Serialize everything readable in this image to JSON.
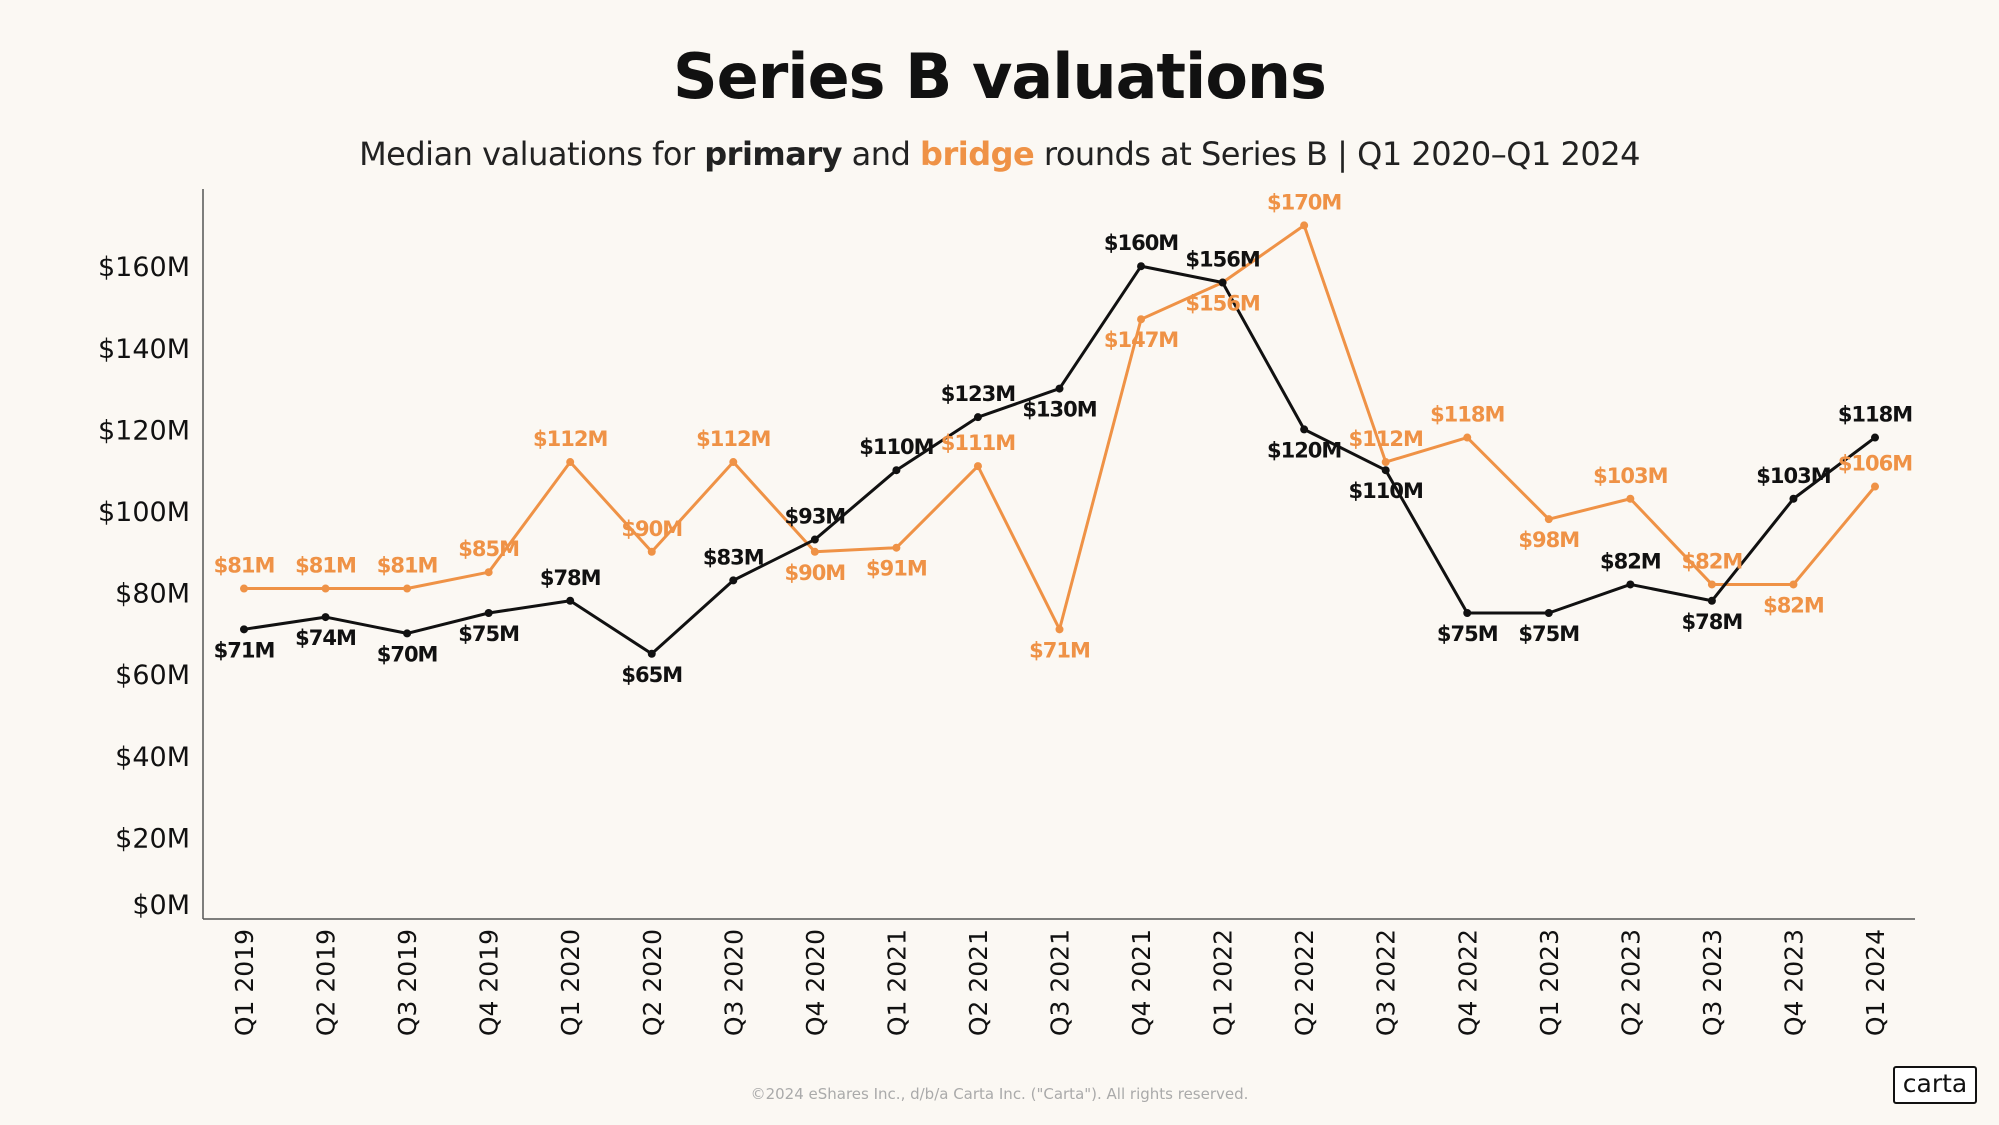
{
  "header": {
    "title": "Series B valuations",
    "subtitle_pre": "Median valuations for ",
    "subtitle_primary": "primary",
    "subtitle_mid": " and ",
    "subtitle_bridge": "bridge",
    "subtitle_post": " rounds at  Series B | Q1 2020–Q1 2024"
  },
  "footer": {
    "copyright": "©2024 eShares Inc., d/b/a Carta Inc. (\"Carta\"). All rights reserved.",
    "logo": "carta"
  },
  "chart_data": {
    "type": "line",
    "title": "Series B valuations",
    "xlabel": "",
    "ylabel": "",
    "ylim": [
      0,
      180
    ],
    "yticks": [
      0,
      20,
      40,
      60,
      80,
      100,
      120,
      140,
      160
    ],
    "ytick_labels": [
      "$0M",
      "$20M",
      "$40M",
      "$60M",
      "$80M",
      "$100M",
      "$120M",
      "$140M",
      "$160M"
    ],
    "categories": [
      "Q1 2019",
      "Q2 2019",
      "Q3 2019",
      "Q4 2019",
      "Q1 2020",
      "Q2 2020",
      "Q3 2020",
      "Q4 2020",
      "Q1 2021",
      "Q2 2021",
      "Q3 2021",
      "Q4 2021",
      "Q1 2022",
      "Q2 2022",
      "Q3 2022",
      "Q4 2022",
      "Q1 2023",
      "Q2 2023",
      "Q3 2023",
      "Q4 2023",
      "Q1 2024"
    ],
    "grid": false,
    "series": [
      {
        "name": "primary",
        "color": "#111111",
        "values": [
          71,
          74,
          70,
          75,
          78,
          65,
          83,
          93,
          110,
          123,
          130,
          160,
          156,
          120,
          110,
          75,
          75,
          82,
          78,
          103,
          118
        ],
        "label_placement": [
          "below",
          "below",
          "below",
          "below",
          "above",
          "below",
          "above",
          "above",
          "above",
          "above",
          "below",
          "above",
          "above",
          "below",
          "below",
          "below",
          "below",
          "above",
          "below",
          "above",
          "above"
        ]
      },
      {
        "name": "bridge",
        "color": "#ef9246",
        "values": [
          81,
          81,
          81,
          85,
          112,
          90,
          112,
          90,
          91,
          111,
          71,
          147,
          156,
          170,
          112,
          118,
          98,
          103,
          82,
          82,
          106
        ],
        "label_placement": [
          "above",
          "above",
          "above",
          "above",
          "above",
          "above",
          "above",
          "below",
          "below",
          "above",
          "below",
          "below",
          "below",
          "above",
          "above",
          "above",
          "below",
          "above",
          "above",
          "below",
          "above"
        ]
      }
    ]
  }
}
